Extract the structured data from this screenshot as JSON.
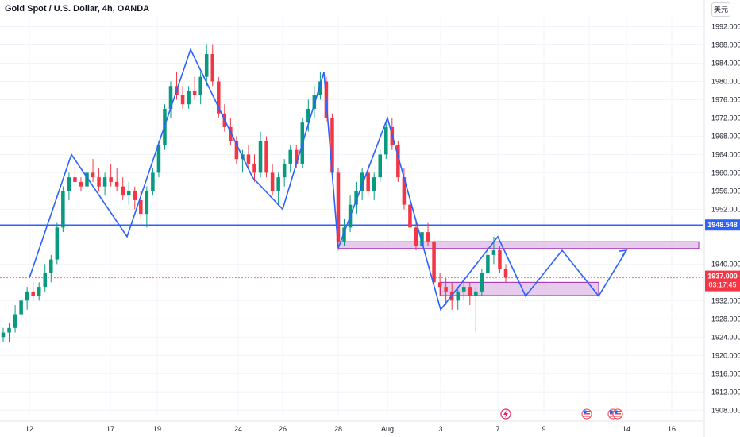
{
  "header": {
    "title": "Gold Spot / U.S. Dollar, 4h, OANDA",
    "currency_button": "美元"
  },
  "price_labels": {
    "blue_line": "1948.548",
    "current_price": "1937.000",
    "countdown": "03:17:45"
  },
  "colors": {
    "up": "#089981",
    "down": "#f23645",
    "drawing": "#2962ff",
    "zone_fill": "#e1bee7",
    "zone_border": "#9c27b0",
    "current_line": "#f23645",
    "grid": "#f0f3fa"
  },
  "x_axis_labels": [
    "12",
    "17",
    "19",
    "24",
    "26",
    "28",
    "Aug",
    "3",
    "7",
    "9",
    "14",
    "16"
  ],
  "chart_data": {
    "type": "candlestick",
    "title": "Gold Spot / U.S. Dollar, 4h, OANDA",
    "yaxis_ticks": [
      "1992.000",
      "1988.000",
      "1984.000",
      "1980.000",
      "1976.000",
      "1972.000",
      "1968.000",
      "1964.000",
      "1960.000",
      "1956.000",
      "1952.000",
      "1940.000",
      "1932.000",
      "1928.000",
      "1924.000",
      "1920.000",
      "1916.000",
      "1912.000",
      "1908.000"
    ],
    "ylim": [
      1907,
      1994
    ],
    "horizontal_line": 1948.548,
    "current_price": 1937.0,
    "zones": [
      {
        "from_date": "Jul 28",
        "to_date": "Aug 16",
        "low": 1943.4,
        "high": 1944.9
      },
      {
        "from_date": "Aug 3",
        "to_date": "Aug 12",
        "low": 1933.1,
        "high": 1936.0
      }
    ],
    "zigzag": [
      {
        "date": "Jul 12",
        "price": 1937
      },
      {
        "date": "Jul 14",
        "price": 1964
      },
      {
        "date": "Jul 18",
        "price": 1946
      },
      {
        "date": "Jul 20",
        "price": 1987
      },
      {
        "date": "Jul 25",
        "price": 1959
      },
      {
        "date": "Jul 26",
        "price": 1952
      },
      {
        "date": "Jul 27",
        "price": 1982
      },
      {
        "date": "Jul 28",
        "price": 1943.5
      },
      {
        "date": "Aug 1",
        "price": 1972
      },
      {
        "date": "Aug 3",
        "price": 1930
      },
      {
        "date": "Aug 7",
        "price": 1946
      },
      {
        "date": "Aug 8",
        "price": 1933
      },
      {
        "date": "Aug 10",
        "price": 1943
      },
      {
        "date": "Aug 12",
        "price": 1933
      },
      {
        "date": "Aug 14",
        "price": 1943
      }
    ],
    "candles_note_omitted": "",
    "candles": [
      [
        1924,
        1926,
        1923,
        1925
      ],
      [
        1925,
        1927,
        1923,
        1926
      ],
      [
        1926,
        1931,
        1925,
        1929
      ],
      [
        1929,
        1933,
        1928,
        1932
      ],
      [
        1932,
        1935,
        1930,
        1934
      ],
      [
        1934,
        1936,
        1932,
        1933
      ],
      [
        1933,
        1936,
        1932,
        1935
      ],
      [
        1935,
        1940,
        1934,
        1938
      ],
      [
        1938,
        1942,
        1936,
        1941
      ],
      [
        1941,
        1949,
        1940,
        1948
      ],
      [
        1948,
        1957,
        1947,
        1956
      ],
      [
        1956,
        1960,
        1954,
        1959
      ],
      [
        1959,
        1962,
        1957,
        1958
      ],
      [
        1958,
        1959,
        1956,
        1957
      ],
      [
        1957,
        1961,
        1956,
        1960
      ],
      [
        1960,
        1963,
        1958,
        1959
      ],
      [
        1959,
        1961,
        1956,
        1957
      ],
      [
        1957,
        1960,
        1955,
        1959
      ],
      [
        1959,
        1962,
        1957,
        1958
      ],
      [
        1958,
        1961,
        1956,
        1957
      ],
      [
        1957,
        1959,
        1954,
        1955
      ],
      [
        1955,
        1958,
        1953,
        1956
      ],
      [
        1956,
        1957,
        1952,
        1954
      ],
      [
        1954,
        1956,
        1950,
        1951
      ],
      [
        1951,
        1957,
        1948,
        1956
      ],
      [
        1956,
        1961,
        1955,
        1960
      ],
      [
        1960,
        1967,
        1959,
        1966
      ],
      [
        1966,
        1975,
        1965,
        1974
      ],
      [
        1974,
        1980,
        1972,
        1979
      ],
      [
        1979,
        1982,
        1976,
        1977
      ],
      [
        1977,
        1979,
        1974,
        1975
      ],
      [
        1975,
        1979,
        1974,
        1978
      ],
      [
        1978,
        1981,
        1976,
        1977
      ],
      [
        1977,
        1982,
        1975,
        1981
      ],
      [
        1981,
        1988,
        1979,
        1986
      ],
      [
        1986,
        1988,
        1979,
        1980
      ],
      [
        1980,
        1981,
        1972,
        1973
      ],
      [
        1973,
        1975,
        1969,
        1970
      ],
      [
        1970,
        1972,
        1966,
        1967
      ],
      [
        1967,
        1968,
        1962,
        1963
      ],
      [
        1963,
        1965,
        1960,
        1964
      ],
      [
        1964,
        1966,
        1961,
        1962
      ],
      [
        1962,
        1964,
        1958,
        1960
      ],
      [
        1960,
        1969,
        1959,
        1967
      ],
      [
        1967,
        1968,
        1959,
        1960
      ],
      [
        1960,
        1962,
        1955,
        1956
      ],
      [
        1956,
        1960,
        1953,
        1959
      ],
      [
        1959,
        1963,
        1957,
        1962
      ],
      [
        1962,
        1966,
        1960,
        1965
      ],
      [
        1965,
        1966,
        1961,
        1962
      ],
      [
        1962,
        1972,
        1961,
        1971
      ],
      [
        1971,
        1976,
        1969,
        1974
      ],
      [
        1974,
        1979,
        1972,
        1977
      ],
      [
        1977,
        1982,
        1976,
        1980
      ],
      [
        1980,
        1981,
        1971,
        1972
      ],
      [
        1972,
        1973,
        1959,
        1960
      ],
      [
        1960,
        1961,
        1943,
        1945
      ],
      [
        1945,
        1950,
        1944,
        1948
      ],
      [
        1948,
        1955,
        1947,
        1953
      ],
      [
        1953,
        1958,
        1951,
        1956
      ],
      [
        1956,
        1961,
        1954,
        1960
      ],
      [
        1960,
        1962,
        1955,
        1956
      ],
      [
        1956,
        1960,
        1954,
        1959
      ],
      [
        1959,
        1965,
        1958,
        1964
      ],
      [
        1964,
        1971,
        1963,
        1970
      ],
      [
        1970,
        1972,
        1965,
        1966
      ],
      [
        1966,
        1967,
        1958,
        1959
      ],
      [
        1959,
        1961,
        1952,
        1953
      ],
      [
        1953,
        1955,
        1947,
        1948
      ],
      [
        1948,
        1950,
        1943,
        1944
      ],
      [
        1944,
        1949,
        1943,
        1947
      ],
      [
        1947,
        1949,
        1944,
        1945
      ],
      [
        1945,
        1946,
        1935,
        1936
      ],
      [
        1936,
        1938,
        1933,
        1935
      ],
      [
        1935,
        1937,
        1931,
        1934
      ],
      [
        1934,
        1936,
        1930,
        1932
      ],
      [
        1932,
        1935,
        1930,
        1934
      ],
      [
        1934,
        1937,
        1932,
        1935
      ],
      [
        1935,
        1936,
        1931,
        1933
      ],
      [
        1933,
        1935,
        1925,
        1934
      ],
      [
        1934,
        1939,
        1933,
        1938
      ],
      [
        1938,
        1944,
        1937,
        1942
      ],
      [
        1942,
        1946,
        1940,
        1943
      ],
      [
        1943,
        1944,
        1938,
        1939
      ],
      [
        1939,
        1940,
        1936,
        1937
      ]
    ]
  }
}
